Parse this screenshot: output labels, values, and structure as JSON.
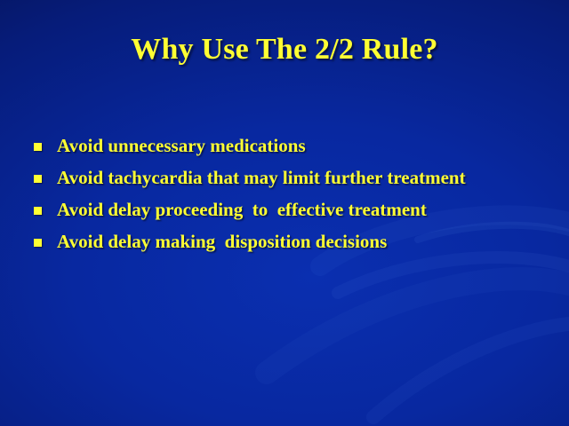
{
  "slide": {
    "title": "Why Use The 2/2 Rule?",
    "bullets": [
      "Avoid unnecessary medications",
      "Avoid tachycardia that may limit further treatment",
      "Avoid delay proceeding  to  effective treatment",
      "Avoid delay making  disposition decisions"
    ]
  },
  "colors": {
    "background": "#0828a0",
    "text": "#ffff33"
  },
  "icons": {
    "bullet": "square-bullet-icon"
  }
}
